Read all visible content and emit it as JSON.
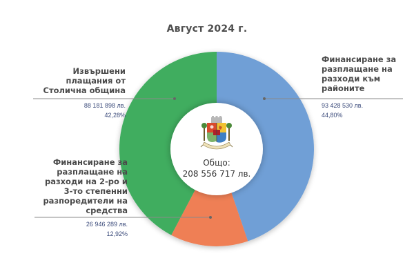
{
  "title": "Август 2024 г.",
  "center": {
    "total_label": "Общо:",
    "total_value": "208 556 717 лв.",
    "emblem_icon": "sofia-coat-of-arms-icon"
  },
  "segments": [
    {
      "label_lines": [
        "Финансиране за",
        "разплащане на",
        "разходи към",
        "районите"
      ],
      "amount": "93 428 530 лв.",
      "percent": "44,80%",
      "color": "#6f9fd6"
    },
    {
      "label_lines": [
        "Финансиране за",
        "разплащане на",
        "разходи на 2-ро и",
        "3-то степенни",
        "разпоредители на",
        "средства"
      ],
      "amount": "26 946 289 лв.",
      "percent": "12,92%",
      "color": "#ef7f55"
    },
    {
      "label_lines": [
        "Извършени",
        "плащания от",
        "Столична община"
      ],
      "amount": "88 181 898 лв.",
      "percent": "42,28%",
      "color": "#3fad5f"
    }
  ],
  "chart_data": {
    "type": "pie",
    "title": "Август 2024 г.",
    "subtitle": "Общо: 208 556 717 лв.",
    "donut": true,
    "categories": [
      "Финансиране за разплащане на разходи към районите",
      "Финансиране за разплащане на разходи на 2-ро и 3-то степенни разпоредители на средства",
      "Извършени плащания от Столична община"
    ],
    "values": [
      93428530,
      26946289,
      88181898
    ],
    "percentages": [
      44.8,
      12.92,
      42.28
    ],
    "colors": [
      "#6f9fd6",
      "#ef7f55",
      "#3fad5f"
    ],
    "total": 208556717,
    "unit": "лв.",
    "legend_position": "callout-labels"
  }
}
